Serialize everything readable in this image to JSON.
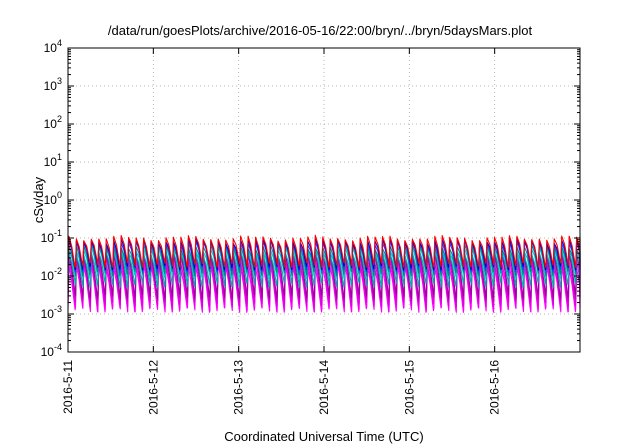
{
  "chart_data": {
    "type": "line",
    "title": "/data/run/goesPlots/archive/2016-05-16/22:00/bryn/../bryn/5daysMars.plot",
    "xlabel": "Coordinated Universal Time (UTC)",
    "ylabel": "cSv/day",
    "yscale": "log",
    "ylim": [
      0.0001,
      10000
    ],
    "y_ticks": [
      {
        "value": 0.0001,
        "base": "10",
        "exp": "-4"
      },
      {
        "value": 0.001,
        "base": "10",
        "exp": "-3"
      },
      {
        "value": 0.01,
        "base": "10",
        "exp": "-2"
      },
      {
        "value": 0.1,
        "base": "10",
        "exp": "-1"
      },
      {
        "value": 1,
        "base": "10",
        "exp": "0"
      },
      {
        "value": 10,
        "base": "10",
        "exp": "1"
      },
      {
        "value": 100,
        "base": "10",
        "exp": "2"
      },
      {
        "value": 1000,
        "base": "10",
        "exp": "3"
      },
      {
        "value": 10000,
        "base": "10",
        "exp": "4"
      }
    ],
    "xlim": [
      "2016-05-11",
      "2016-05-17"
    ],
    "x_ticks": [
      "2016-5-11",
      "2016-5-12",
      "2016-5-13",
      "2016-5-14",
      "2016-5-15",
      "2016-5-16"
    ],
    "grid": true,
    "pattern": {
      "period_hours": 2.1,
      "peak_range": [
        0.05,
        0.1
      ],
      "trough_range": [
        0.0012,
        0.02
      ]
    },
    "series": [
      {
        "color": "#ff00ff",
        "peak": 0.018,
        "trough": 0.0013
      },
      {
        "color": "#e000e0",
        "peak": 0.025,
        "trough": 0.0018
      },
      {
        "color": "#cc00cc",
        "peak": 0.035,
        "trough": 0.0025
      },
      {
        "color": "#a000a0",
        "peak": 0.042,
        "trough": 0.003
      },
      {
        "color": "#00aaaa",
        "peak": 0.04,
        "trough": 0.006
      },
      {
        "color": "#00cccc",
        "peak": 0.05,
        "trough": 0.01
      },
      {
        "color": "#008888",
        "peak": 0.06,
        "trough": 0.012
      },
      {
        "color": "#3333ff",
        "peak": 0.075,
        "trough": 0.015
      },
      {
        "color": "#0000cc",
        "peak": 0.085,
        "trough": 0.017
      },
      {
        "color": "#ff0000",
        "peak": 0.1,
        "trough": 0.02
      }
    ]
  }
}
